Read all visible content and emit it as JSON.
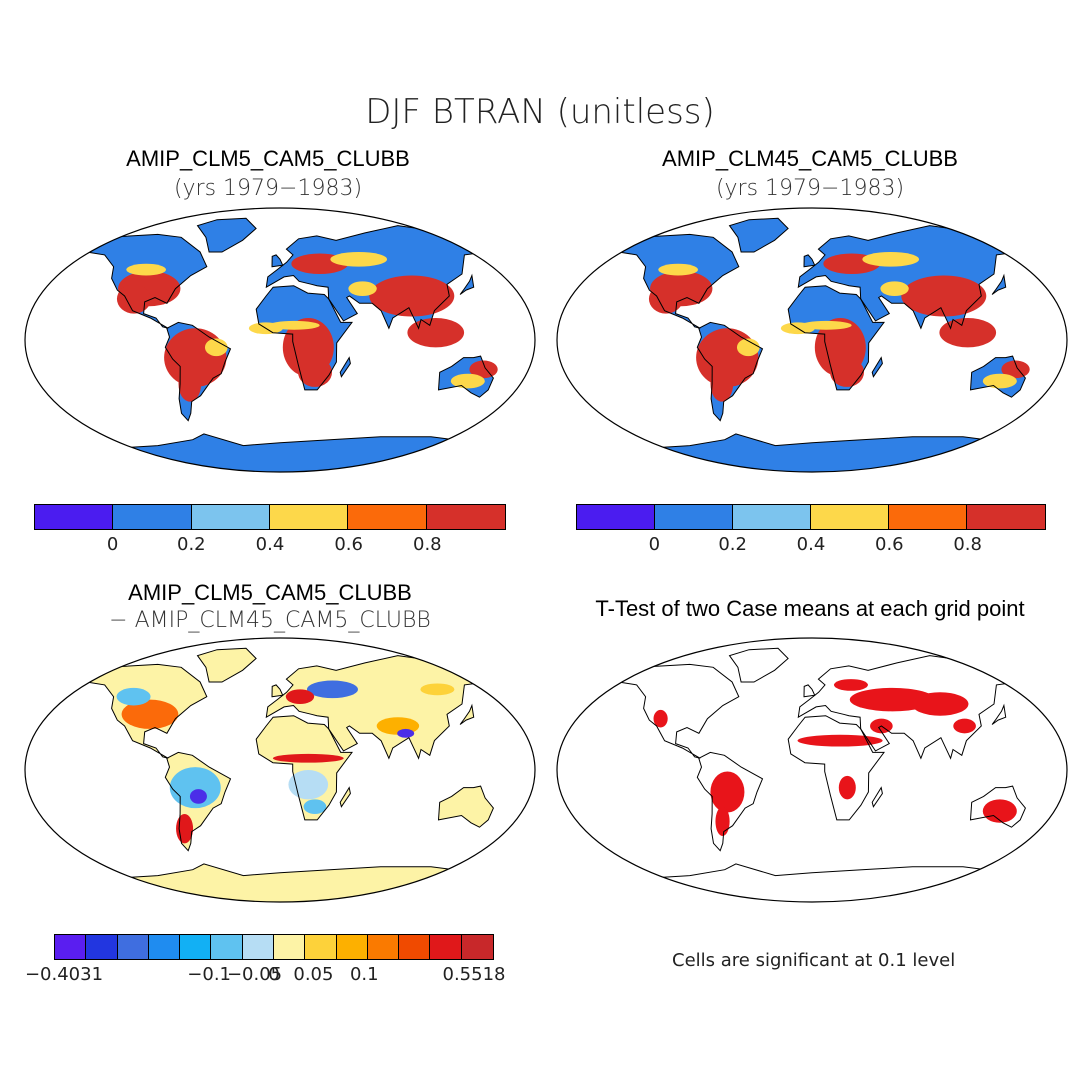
{
  "title": "DJF BTRAN (unitless)",
  "panels": [
    {
      "title": "AMIP_CLM5_CAM5_CLUBB",
      "subtitle": "(yrs 1979−1983)"
    },
    {
      "title": "AMIP_CLM45_CAM5_CLUBB",
      "subtitle": "(yrs 1979−1983)"
    },
    {
      "title": "AMIP_CLM5_CAM5_CLUBB",
      "subtitle": "− AMIP_CLM45_CAM5_CLUBB"
    },
    {
      "title": "T-Test of two Case means at each grid point",
      "subtitle": ""
    }
  ],
  "colorbar_main": {
    "colors": [
      "#4b1cf0",
      "#2f80e6",
      "#7cc4ee",
      "#fdd84a",
      "#fb6a0a",
      "#d6302a"
    ],
    "labels": [
      "0",
      "0.2",
      "0.4",
      "0.6",
      "0.8"
    ]
  },
  "colorbar_diff": {
    "colors": [
      "#5a1ef0",
      "#2236e0",
      "#3f6ee0",
      "#1f8cf0",
      "#12b0f4",
      "#5fc2f0",
      "#b6ddf4",
      "#fdf3a6",
      "#fdd23a",
      "#fdb000",
      "#fa7a00",
      "#f04a00",
      "#e0181a",
      "#c8282a"
    ],
    "labels": [
      "−0.4031",
      "−0.1",
      "−0.05",
      "0",
      "0.05",
      "0.1",
      "0.5518"
    ]
  },
  "note": "Cells are significant at 0.1 level",
  "colors": {
    "ocean": "#ffffff",
    "coast": "#000000",
    "blue": "#2f80e6",
    "red": "#d6302a",
    "yellow": "#fdd84a",
    "diff_land": "#fdf3a6",
    "sig_red": "#e8141a"
  }
}
